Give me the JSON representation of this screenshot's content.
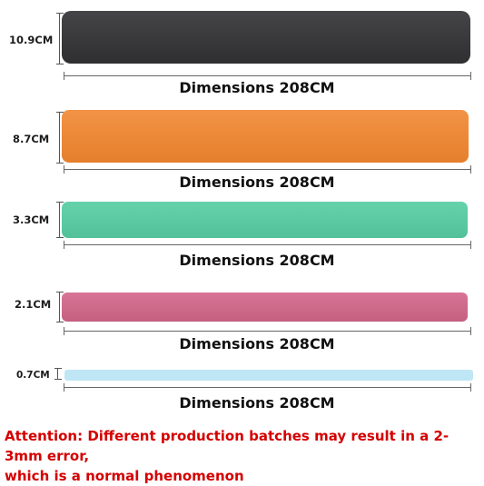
{
  "bands": [
    {
      "width_label": "10.9CM",
      "length_label": "Dimensions 208CM",
      "color": "#3a3a3c"
    },
    {
      "width_label": "8.7CM",
      "length_label": "Dimensions 208CM",
      "color": "#ec8a35"
    },
    {
      "width_label": "3.3CM",
      "length_label": "Dimensions 208CM",
      "color": "#5dcaa3"
    },
    {
      "width_label": "2.1CM",
      "length_label": "Dimensions 208CM",
      "color": "#cf6a8a"
    },
    {
      "width_label": "0.7CM",
      "length_label": "Dimensions 208CM",
      "color": "#bfe6f4"
    }
  ],
  "note": {
    "line1": "Attention: Different production batches may result in a 2-3mm error,",
    "line2": "which is a normal phenomenon"
  }
}
